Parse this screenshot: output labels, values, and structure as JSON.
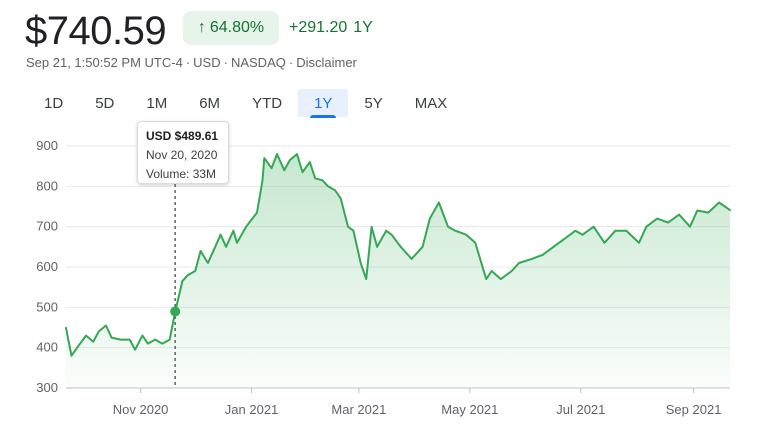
{
  "header": {
    "price": "$740.59",
    "percent_change": "64.80%",
    "abs_change": "+291.20",
    "period_label": "1Y",
    "meta": [
      "Sep 21, 1:50:52 PM UTC-4",
      "USD",
      "NASDAQ",
      "Disclaimer"
    ],
    "meta_separator": "·"
  },
  "ranges": [
    {
      "label": "1D",
      "active": false
    },
    {
      "label": "5D",
      "active": false
    },
    {
      "label": "1M",
      "active": false
    },
    {
      "label": "6M",
      "active": false
    },
    {
      "label": "YTD",
      "active": false
    },
    {
      "label": "1Y",
      "active": true
    },
    {
      "label": "5Y",
      "active": false
    },
    {
      "label": "MAX",
      "active": false
    }
  ],
  "tooltip": {
    "price": "USD $489.61",
    "date": "Nov 20, 2020",
    "volume": "Volume: 33M"
  },
  "colors": {
    "line": "#34a853",
    "fill_top": "#34a853",
    "positive_text": "#137333",
    "pill_bg": "#e6f4ea",
    "active_range": "#1a73e8"
  },
  "chart_data": {
    "type": "area",
    "title": "",
    "xlabel": "",
    "ylabel": "",
    "x_range": [
      "2020-09-21",
      "2021-09-21"
    ],
    "ylim": [
      300,
      900
    ],
    "yticks": [
      300,
      400,
      500,
      600,
      700,
      800,
      900
    ],
    "ytick_labels": [
      "300",
      "400",
      "500",
      "600",
      "700",
      "800",
      "900"
    ],
    "xticks": [
      "2020-11-01",
      "2021-01-01",
      "2021-03-01",
      "2021-05-01",
      "2021-07-01",
      "2021-09-01"
    ],
    "xtick_labels": [
      "Nov 2020",
      "Jan 2021",
      "Mar 2021",
      "May 2021",
      "Jul 2021",
      "Sep 2021"
    ],
    "grid": true,
    "legend": "none",
    "highlight": {
      "date": "2020-11-20",
      "value": 489.61
    },
    "series": [
      {
        "x": [
          "2020-09-21",
          "2020-09-24",
          "2020-09-28",
          "2020-10-02",
          "2020-10-06",
          "2020-10-09",
          "2020-10-13",
          "2020-10-16",
          "2020-10-21",
          "2020-10-26",
          "2020-10-29",
          "2020-11-02",
          "2020-11-05",
          "2020-11-09",
          "2020-11-13",
          "2020-11-17",
          "2020-11-20",
          "2020-11-24",
          "2020-11-27",
          "2020-12-01",
          "2020-12-04",
          "2020-12-08",
          "2020-12-11",
          "2020-12-15",
          "2020-12-18",
          "2020-12-22",
          "2020-12-24",
          "2020-12-29",
          "2021-01-04",
          "2021-01-07",
          "2021-01-08",
          "2021-01-12",
          "2021-01-15",
          "2021-01-19",
          "2021-01-22",
          "2021-01-26",
          "2021-01-29",
          "2021-02-02",
          "2021-02-05",
          "2021-02-09",
          "2021-02-12",
          "2021-02-16",
          "2021-02-19",
          "2021-02-23",
          "2021-02-26",
          "2021-03-02",
          "2021-03-05",
          "2021-03-08",
          "2021-03-11",
          "2021-03-16",
          "2021-03-19",
          "2021-03-24",
          "2021-03-30",
          "2021-04-05",
          "2021-04-09",
          "2021-04-14",
          "2021-04-19",
          "2021-04-23",
          "2021-04-29",
          "2021-05-04",
          "2021-05-10",
          "2021-05-13",
          "2021-05-18",
          "2021-05-24",
          "2021-05-28",
          "2021-06-04",
          "2021-06-10",
          "2021-06-16",
          "2021-06-22",
          "2021-06-28",
          "2021-07-02",
          "2021-07-08",
          "2021-07-14",
          "2021-07-20",
          "2021-07-26",
          "2021-08-02",
          "2021-08-06",
          "2021-08-12",
          "2021-08-18",
          "2021-08-24",
          "2021-08-30",
          "2021-09-03",
          "2021-09-09",
          "2021-09-15",
          "2021-09-21"
        ],
        "y": [
          449,
          380,
          405,
          430,
          415,
          440,
          455,
          425,
          420,
          420,
          395,
          430,
          410,
          420,
          410,
          420,
          489.61,
          565,
          580,
          590,
          640,
          610,
          640,
          680,
          650,
          690,
          660,
          700,
          735,
          815,
          870,
          845,
          880,
          840,
          865,
          880,
          835,
          860,
          820,
          815,
          800,
          790,
          770,
          700,
          690,
          610,
          570,
          700,
          650,
          690,
          680,
          650,
          620,
          650,
          720,
          760,
          700,
          690,
          680,
          660,
          570,
          590,
          570,
          590,
          610,
          620,
          630,
          650,
          670,
          690,
          680,
          700,
          660,
          690,
          690,
          660,
          700,
          720,
          710,
          730,
          700,
          740,
          735,
          760,
          741
        ]
      }
    ]
  }
}
